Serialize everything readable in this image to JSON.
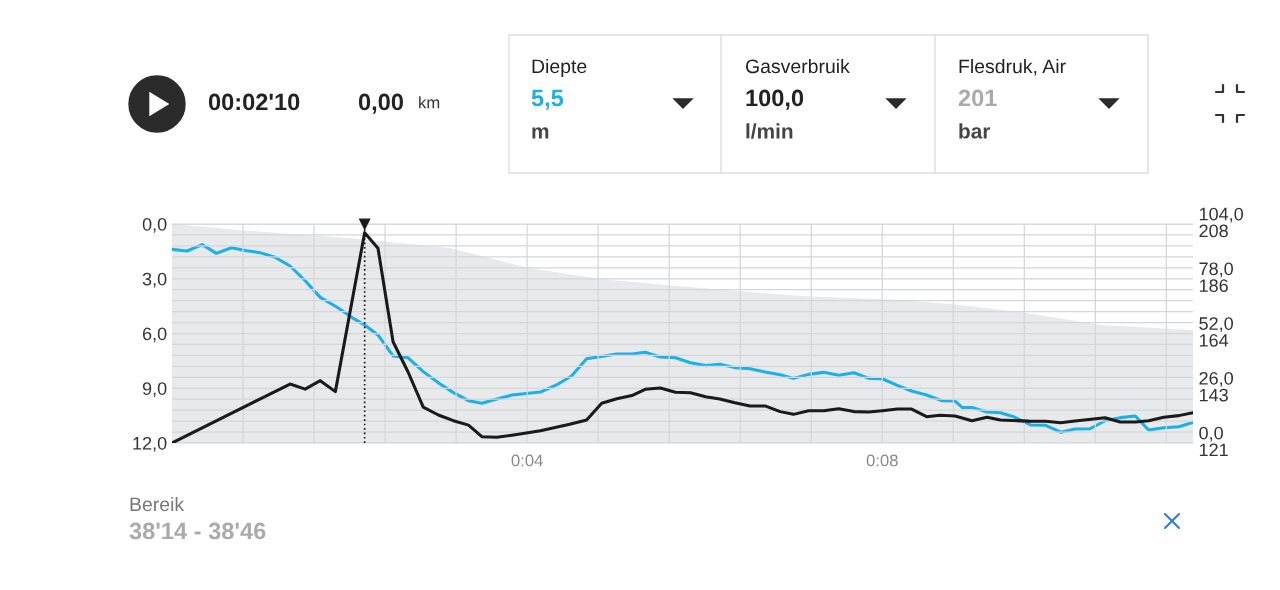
{
  "chart_data": {
    "type": "line",
    "grid": true,
    "xlim": [
      0,
      11.5
    ],
    "xticks": [
      {
        "value": 0.8,
        "label": null
      },
      {
        "value": 1.6,
        "label": null
      },
      {
        "value": 2.4,
        "label": null
      },
      {
        "value": 3.2,
        "label": null
      },
      {
        "value": 4.0,
        "label": "0:04"
      },
      {
        "value": 4.8,
        "label": null
      },
      {
        "value": 5.6,
        "label": null
      },
      {
        "value": 6.4,
        "label": null
      },
      {
        "value": 7.2,
        "label": null
      },
      {
        "value": 8.0,
        "label": "0:08"
      },
      {
        "value": 8.8,
        "label": null
      },
      {
        "value": 9.6,
        "label": null
      },
      {
        "value": 10.4,
        "label": null
      },
      {
        "value": 11.2,
        "label": null
      }
    ],
    "ylim": [
      12,
      0
    ],
    "yticks": [
      {
        "value": 0,
        "label": "0,0"
      },
      {
        "value": 0.6,
        "label": null
      },
      {
        "value": 1.2,
        "label": null
      },
      {
        "value": 1.8,
        "label": null
      },
      {
        "value": 2.4,
        "label": null
      },
      {
        "value": 3,
        "label": "3,0"
      },
      {
        "value": 3.6,
        "label": null
      },
      {
        "value": 4.2,
        "label": null
      },
      {
        "value": 4.8,
        "label": null
      },
      {
        "value": 5.4,
        "label": null
      },
      {
        "value": 6,
        "label": "6,0"
      },
      {
        "value": 6.6,
        "label": null
      },
      {
        "value": 7.2,
        "label": null
      },
      {
        "value": 7.8,
        "label": null
      },
      {
        "value": 8.4,
        "label": null
      },
      {
        "value": 9,
        "label": "9,0"
      },
      {
        "value": 9.6,
        "label": null
      },
      {
        "value": 10.2,
        "label": null
      },
      {
        "value": 10.8,
        "label": null
      },
      {
        "value": 11.4,
        "label": null
      },
      {
        "value": 12,
        "label": "12,0"
      }
    ],
    "y2lim": [
      0,
      104
    ],
    "y2ticks": [
      {
        "value": 0,
        "label": "0,0"
      },
      {
        "value": 26,
        "label": "26,0"
      },
      {
        "value": 52,
        "label": "52,0"
      },
      {
        "value": 78,
        "label": "78,0"
      },
      {
        "value": 104,
        "label": "104,0"
      }
    ],
    "y3lim": [
      121,
      208
    ],
    "y3ticks": [
      {
        "value": 121,
        "label": "121"
      },
      {
        "value": 142.75,
        "label": "143"
      },
      {
        "value": 164.5,
        "label": "164"
      },
      {
        "value": 186.25,
        "label": "186"
      },
      {
        "value": 208,
        "label": "208"
      }
    ],
    "series": [
      {
        "type": "area",
        "axis": "y3",
        "color": "#e8e9ea",
        "x": [
          0,
          0.88,
          2.0,
          3.13,
          4.02,
          4.82,
          5.95,
          7.08,
          8.2,
          8.88,
          9.55,
          10.46,
          11.5
        ],
        "values": [
          208,
          205.2,
          202.4,
          198.5,
          190.5,
          186.2,
          182.6,
          179.4,
          177.8,
          175.8,
          173.0,
          167.9,
          165.9
        ]
      },
      {
        "axis": "y",
        "color": "#1ab0e8",
        "x": [
          0,
          0.17,
          0.34,
          0.5,
          0.67,
          0.84,
          0.99,
          1.16,
          1.33,
          1.5,
          1.67,
          1.86,
          2.04,
          2.17,
          2.32,
          2.49,
          2.66,
          2.83,
          3.02,
          3.17,
          3.34,
          3.49,
          3.66,
          3.83,
          4.15,
          4.33,
          4.5,
          4.67,
          4.82,
          5.01,
          5.18,
          5.33,
          5.5,
          5.67,
          5.84,
          6.01,
          6.17,
          6.34,
          6.51,
          6.68,
          6.85,
          7.0,
          7.17,
          7.34,
          7.51,
          7.68,
          7.85,
          8.0,
          8.17,
          8.33,
          8.5,
          8.67,
          8.82,
          8.9,
          9.01,
          9.18,
          9.33,
          9.48,
          9.67,
          9.84,
          10.01,
          10.17,
          10.34,
          10.51,
          10.68,
          10.85,
          11.0,
          11.17,
          11.34,
          11.5
        ],
        "values": [
          1.39,
          1.48,
          1.13,
          1.61,
          1.3,
          1.46,
          1.57,
          1.82,
          2.3,
          3.11,
          4.02,
          4.56,
          5.17,
          5.53,
          6.08,
          7.23,
          7.33,
          8.09,
          8.77,
          9.24,
          9.68,
          9.82,
          9.59,
          9.37,
          9.21,
          8.82,
          8.33,
          7.38,
          7.27,
          7.12,
          7.12,
          7.03,
          7.29,
          7.33,
          7.6,
          7.76,
          7.69,
          7.87,
          7.93,
          8.11,
          8.26,
          8.46,
          8.24,
          8.13,
          8.29,
          8.15,
          8.46,
          8.48,
          8.84,
          9.15,
          9.37,
          9.68,
          9.7,
          10.05,
          10.05,
          10.3,
          10.34,
          10.56,
          11.01,
          11.03,
          11.41,
          11.23,
          11.22,
          10.78,
          10.61,
          10.52,
          11.29,
          11.16,
          11.11,
          10.87
        ]
      },
      {
        "axis": "y2",
        "color": "#1a1a1a",
        "x": [
          0,
          1.33,
          1.5,
          1.67,
          1.84,
          2.17,
          2.32,
          2.49,
          2.66,
          2.83,
          3.0,
          3.17,
          3.34,
          3.49,
          3.66,
          3.83,
          4.15,
          4.48,
          4.67,
          4.84,
          5.01,
          5.18,
          5.33,
          5.5,
          5.67,
          5.84,
          6.01,
          6.17,
          6.34,
          6.51,
          6.68,
          6.85,
          7.0,
          7.17,
          7.34,
          7.51,
          7.68,
          7.85,
          8.0,
          8.17,
          8.33,
          8.5,
          8.65,
          8.82,
          9.01,
          9.18,
          9.33,
          9.65,
          9.84,
          10.01,
          10.17,
          10.51,
          10.68,
          10.85,
          11.0,
          11.17,
          11.34,
          11.5
        ],
        "values": [
          0,
          28.0,
          25.6,
          29.6,
          24.4,
          99.9,
          92.5,
          48.1,
          33.6,
          17.0,
          13.3,
          10.6,
          8.5,
          3.0,
          2.7,
          3.7,
          5.8,
          8.9,
          10.9,
          18.9,
          21.0,
          22.5,
          25.5,
          26.1,
          24.1,
          23.9,
          22.0,
          20.9,
          19.1,
          17.6,
          17.6,
          14.9,
          13.6,
          15.3,
          15.3,
          16.3,
          14.9,
          14.7,
          15.3,
          16.1,
          16.1,
          12.5,
          13.2,
          12.8,
          10.6,
          12.2,
          10.9,
          10.4,
          10.3,
          9.6,
          10.4,
          12.0,
          10.0,
          10.0,
          10.6,
          12.2,
          13.0,
          14.4
        ]
      }
    ],
    "ref_lines": [
      {
        "axis": "x",
        "value": 2.17,
        "color": "#1a1a1a",
        "line_style": "dotted"
      }
    ],
    "annotations": [
      "00:02'10",
      "0,00",
      "km",
      "Diepte",
      "5,5",
      "m",
      "Gasverbruik",
      "100,0",
      "l/min",
      "Flesdruk, Air",
      "201",
      "bar",
      "Bereik",
      "38'14 - 38'46"
    ]
  }
}
